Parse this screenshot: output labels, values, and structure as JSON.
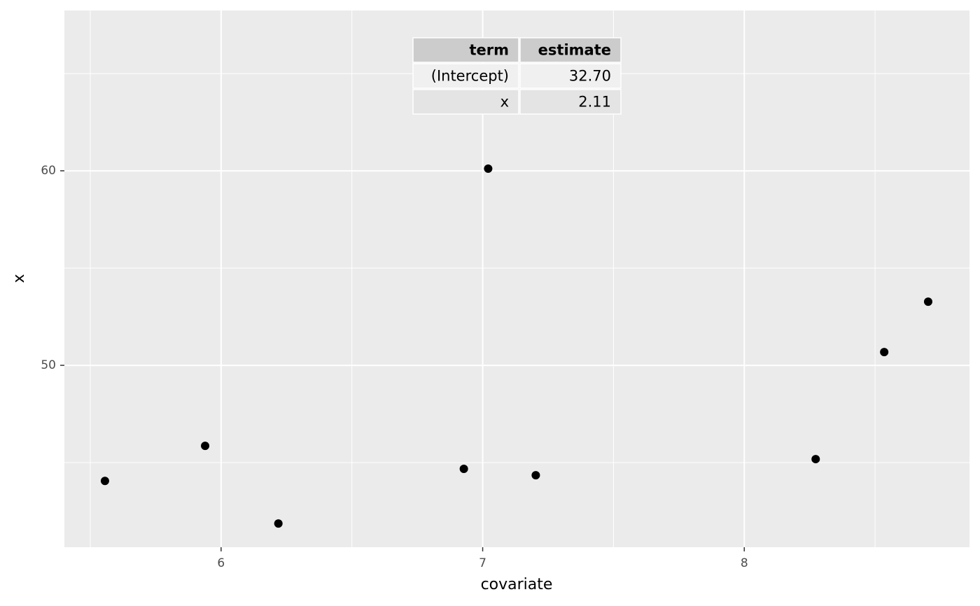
{
  "chart_data": {
    "type": "scatter",
    "x_label": "covariate",
    "y_label": "x",
    "x": [
      5.556,
      5.939,
      6.219,
      6.928,
      7.021,
      7.203,
      8.273,
      8.535,
      8.703
    ],
    "values": [
      44.06,
      45.86,
      41.87,
      44.68,
      60.11,
      44.35,
      45.18,
      50.68,
      53.27
    ],
    "color": "#000000",
    "xlim": [
      5.401,
      8.861
    ],
    "ylim": [
      40.65,
      68.24
    ],
    "xticks": [
      6,
      7,
      8
    ],
    "yticks": [
      50,
      60
    ],
    "x_minor_grid": [
      5.5,
      6.5,
      7.5,
      8.5
    ],
    "y_minor_grid": [
      45,
      55,
      65
    ],
    "grid": true,
    "table": {
      "header": [
        "term",
        "estimate"
      ],
      "rows": [
        [
          "(Intercept)",
          "32.70"
        ],
        [
          "x",
          "2.11"
        ]
      ]
    }
  }
}
